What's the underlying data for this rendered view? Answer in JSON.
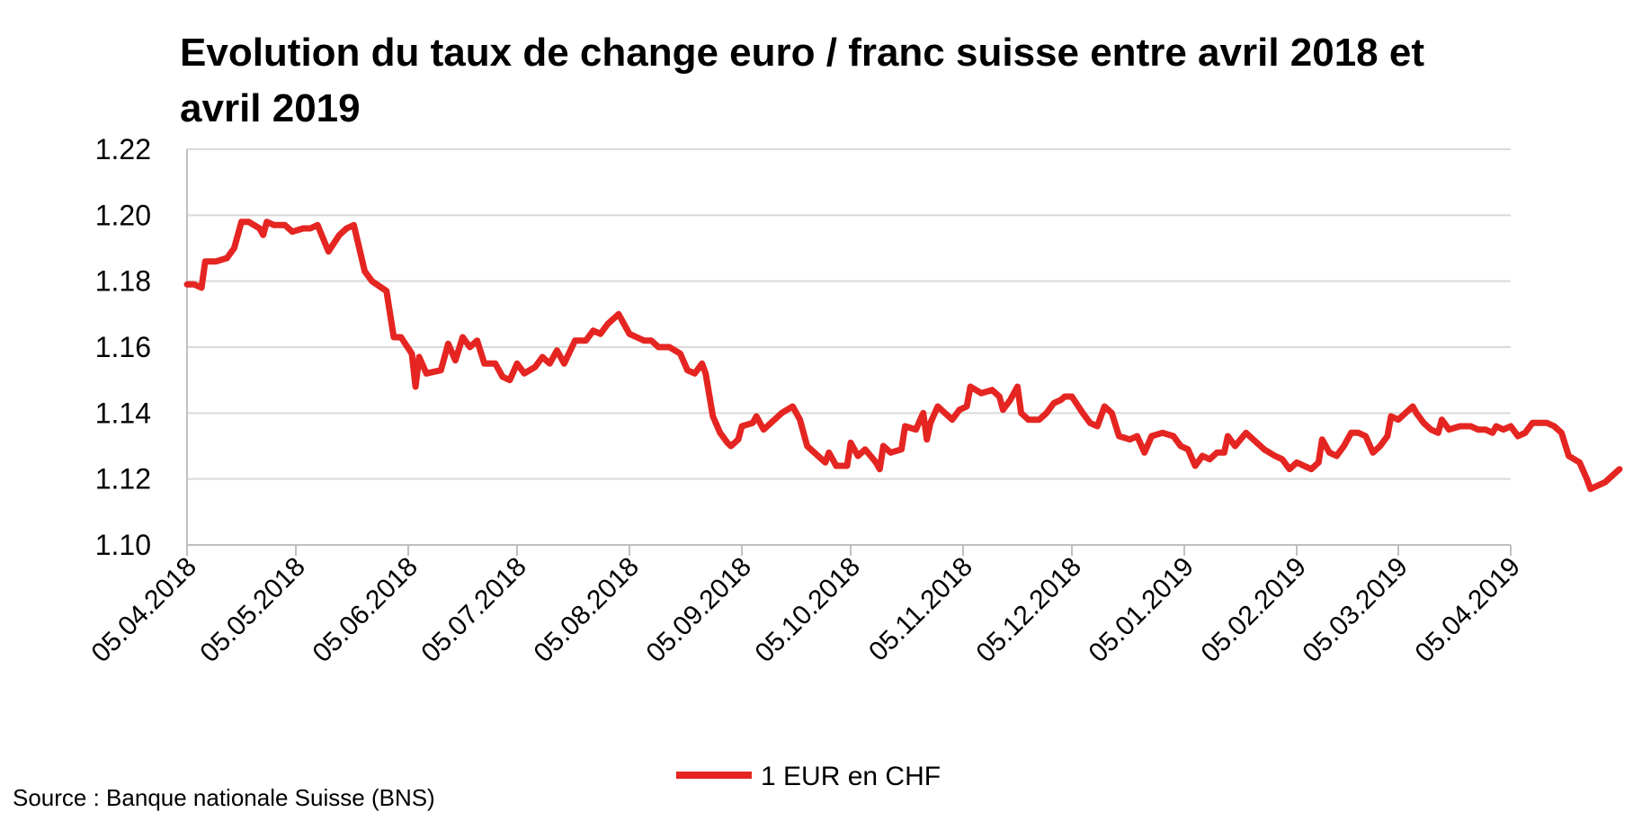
{
  "chart_data": {
    "type": "line",
    "title": "Evolution du taux de change euro / franc suisse entre avril 2018 et avril 2019",
    "source": "Source : Banque nationale Suisse (BNS)",
    "xlabel": "",
    "ylabel": "",
    "ylim": [
      1.1,
      1.22
    ],
    "y_ticks": [
      "1.10",
      "1.12",
      "1.14",
      "1.16",
      "1.18",
      "1.20",
      "1.22"
    ],
    "x_ticks": [
      "05.04.2018",
      "05.05.2018",
      "05.06.2018",
      "05.07.2018",
      "05.08.2018",
      "05.09.2018",
      "05.10.2018",
      "05.11.2018",
      "05.12.2018",
      "05.01.2019",
      "05.02.2019",
      "05.03.2019",
      "05.04.2019"
    ],
    "grid": "horizontal",
    "legend_position": "bottom",
    "colors": {
      "line": "#e52521",
      "grid": "#d9d9d9",
      "axis": "#bfbfbf"
    },
    "series": [
      {
        "name": "1 EUR en CHF",
        "points": [
          [
            "2018-04-05",
            1.179
          ],
          [
            "2018-04-07",
            1.179
          ],
          [
            "2018-04-09",
            1.178
          ],
          [
            "2018-04-10",
            1.186
          ],
          [
            "2018-04-13",
            1.186
          ],
          [
            "2018-04-16",
            1.187
          ],
          [
            "2018-04-18",
            1.19
          ],
          [
            "2018-04-20",
            1.198
          ],
          [
            "2018-04-22",
            1.198
          ],
          [
            "2018-04-25",
            1.196
          ],
          [
            "2018-04-26",
            1.194
          ],
          [
            "2018-04-27",
            1.198
          ],
          [
            "2018-04-29",
            1.197
          ],
          [
            "2018-05-02",
            1.197
          ],
          [
            "2018-05-04",
            1.195
          ],
          [
            "2018-05-07",
            1.196
          ],
          [
            "2018-05-09",
            1.196
          ],
          [
            "2018-05-11",
            1.197
          ],
          [
            "2018-05-14",
            1.189
          ],
          [
            "2018-05-17",
            1.194
          ],
          [
            "2018-05-19",
            1.196
          ],
          [
            "2018-05-21",
            1.197
          ],
          [
            "2018-05-24",
            1.183
          ],
          [
            "2018-05-26",
            1.18
          ],
          [
            "2018-05-30",
            1.177
          ],
          [
            "2018-06-01",
            1.163
          ],
          [
            "2018-06-03",
            1.163
          ],
          [
            "2018-06-06",
            1.158
          ],
          [
            "2018-06-07",
            1.148
          ],
          [
            "2018-06-08",
            1.157
          ],
          [
            "2018-06-10",
            1.152
          ],
          [
            "2018-06-14",
            1.153
          ],
          [
            "2018-06-16",
            1.161
          ],
          [
            "2018-06-18",
            1.156
          ],
          [
            "2018-06-20",
            1.163
          ],
          [
            "2018-06-22",
            1.16
          ],
          [
            "2018-06-24",
            1.162
          ],
          [
            "2018-06-26",
            1.155
          ],
          [
            "2018-06-29",
            1.155
          ],
          [
            "2018-07-01",
            1.151
          ],
          [
            "2018-07-03",
            1.15
          ],
          [
            "2018-07-05",
            1.155
          ],
          [
            "2018-07-07",
            1.152
          ],
          [
            "2018-07-10",
            1.154
          ],
          [
            "2018-07-12",
            1.157
          ],
          [
            "2018-07-14",
            1.155
          ],
          [
            "2018-07-16",
            1.159
          ],
          [
            "2018-07-18",
            1.155
          ],
          [
            "2018-07-21",
            1.162
          ],
          [
            "2018-07-24",
            1.162
          ],
          [
            "2018-07-26",
            1.165
          ],
          [
            "2018-07-28",
            1.164
          ],
          [
            "2018-07-30",
            1.167
          ],
          [
            "2018-08-02",
            1.17
          ],
          [
            "2018-08-05",
            1.164
          ],
          [
            "2018-08-07",
            1.163
          ],
          [
            "2018-08-09",
            1.162
          ],
          [
            "2018-08-11",
            1.162
          ],
          [
            "2018-08-13",
            1.16
          ],
          [
            "2018-08-16",
            1.16
          ],
          [
            "2018-08-19",
            1.158
          ],
          [
            "2018-08-21",
            1.153
          ],
          [
            "2018-08-23",
            1.152
          ],
          [
            "2018-08-25",
            1.155
          ],
          [
            "2018-08-26",
            1.152
          ],
          [
            "2018-08-28",
            1.139
          ],
          [
            "2018-08-30",
            1.134
          ],
          [
            "2018-09-01",
            1.131
          ],
          [
            "2018-09-02",
            1.13
          ],
          [
            "2018-09-04",
            1.132
          ],
          [
            "2018-09-05",
            1.136
          ],
          [
            "2018-09-08",
            1.137
          ],
          [
            "2018-09-09",
            1.139
          ],
          [
            "2018-09-11",
            1.135
          ],
          [
            "2018-09-13",
            1.137
          ],
          [
            "2018-09-16",
            1.14
          ],
          [
            "2018-09-19",
            1.142
          ],
          [
            "2018-09-21",
            1.138
          ],
          [
            "2018-09-23",
            1.13
          ],
          [
            "2018-09-26",
            1.127
          ],
          [
            "2018-09-28",
            1.125
          ],
          [
            "2018-09-29",
            1.128
          ],
          [
            "2018-10-01",
            1.124
          ],
          [
            "2018-10-04",
            1.124
          ],
          [
            "2018-10-05",
            1.131
          ],
          [
            "2018-10-07",
            1.127
          ],
          [
            "2018-10-09",
            1.129
          ],
          [
            "2018-10-12",
            1.125
          ],
          [
            "2018-10-13",
            1.123
          ],
          [
            "2018-10-14",
            1.13
          ],
          [
            "2018-10-16",
            1.128
          ],
          [
            "2018-10-19",
            1.129
          ],
          [
            "2018-10-20",
            1.136
          ],
          [
            "2018-10-23",
            1.135
          ],
          [
            "2018-10-25",
            1.14
          ],
          [
            "2018-10-26",
            1.132
          ],
          [
            "2018-10-27",
            1.137
          ],
          [
            "2018-10-29",
            1.142
          ],
          [
            "2018-10-31",
            1.14
          ],
          [
            "2018-11-02",
            1.138
          ],
          [
            "2018-11-04",
            1.141
          ],
          [
            "2018-11-06",
            1.142
          ],
          [
            "2018-11-07",
            1.148
          ],
          [
            "2018-11-10",
            1.146
          ],
          [
            "2018-11-13",
            1.147
          ],
          [
            "2018-11-15",
            1.145
          ],
          [
            "2018-11-16",
            1.141
          ],
          [
            "2018-11-18",
            1.144
          ],
          [
            "2018-11-20",
            1.148
          ],
          [
            "2018-11-21",
            1.14
          ],
          [
            "2018-11-23",
            1.138
          ],
          [
            "2018-11-26",
            1.138
          ],
          [
            "2018-11-28",
            1.14
          ],
          [
            "2018-11-30",
            1.143
          ],
          [
            "2018-12-02",
            1.144
          ],
          [
            "2018-12-03",
            1.145
          ],
          [
            "2018-12-05",
            1.145
          ],
          [
            "2018-12-08",
            1.14
          ],
          [
            "2018-12-10",
            1.137
          ],
          [
            "2018-12-12",
            1.136
          ],
          [
            "2018-12-14",
            1.142
          ],
          [
            "2018-12-16",
            1.14
          ],
          [
            "2018-12-18",
            1.133
          ],
          [
            "2018-12-21",
            1.132
          ],
          [
            "2018-12-23",
            1.133
          ],
          [
            "2018-12-25",
            1.128
          ],
          [
            "2018-12-27",
            1.133
          ],
          [
            "2018-12-30",
            1.134
          ],
          [
            "2019-01-02",
            1.133
          ],
          [
            "2019-01-04",
            1.13
          ],
          [
            "2019-01-06",
            1.129
          ],
          [
            "2019-01-08",
            1.124
          ],
          [
            "2019-01-10",
            1.127
          ],
          [
            "2019-01-12",
            1.126
          ],
          [
            "2019-01-14",
            1.128
          ],
          [
            "2019-01-16",
            1.128
          ],
          [
            "2019-01-17",
            1.133
          ],
          [
            "2019-01-19",
            1.13
          ],
          [
            "2019-01-22",
            1.134
          ],
          [
            "2019-01-24",
            1.132
          ],
          [
            "2019-01-27",
            1.129
          ],
          [
            "2019-01-30",
            1.127
          ],
          [
            "2019-02-01",
            1.126
          ],
          [
            "2019-02-03",
            1.123
          ],
          [
            "2019-02-05",
            1.125
          ],
          [
            "2019-02-07",
            1.124
          ],
          [
            "2019-02-09",
            1.123
          ],
          [
            "2019-02-11",
            1.125
          ],
          [
            "2019-02-12",
            1.132
          ],
          [
            "2019-02-14",
            1.128
          ],
          [
            "2019-02-16",
            1.127
          ],
          [
            "2019-02-18",
            1.13
          ],
          [
            "2019-02-20",
            1.134
          ],
          [
            "2019-02-22",
            1.134
          ],
          [
            "2019-02-24",
            1.133
          ],
          [
            "2019-02-26",
            1.128
          ],
          [
            "2019-02-28",
            1.13
          ],
          [
            "2019-03-02",
            1.133
          ],
          [
            "2019-03-03",
            1.139
          ],
          [
            "2019-03-05",
            1.138
          ],
          [
            "2019-03-07",
            1.14
          ],
          [
            "2019-03-09",
            1.142
          ],
          [
            "2019-03-10",
            1.14
          ],
          [
            "2019-03-12",
            1.137
          ],
          [
            "2019-03-14",
            1.135
          ],
          [
            "2019-03-16",
            1.134
          ],
          [
            "2019-03-17",
            1.138
          ],
          [
            "2019-03-19",
            1.135
          ],
          [
            "2019-03-22",
            1.136
          ],
          [
            "2019-03-25",
            1.136
          ],
          [
            "2019-03-27",
            1.135
          ],
          [
            "2019-03-29",
            1.135
          ],
          [
            "2019-03-31",
            1.134
          ],
          [
            "2019-04-01",
            1.136
          ],
          [
            "2019-04-03",
            1.135
          ],
          [
            "2019-04-05",
            1.136
          ],
          [
            "2019-04-07",
            1.133
          ],
          [
            "2019-04-09",
            1.134
          ],
          [
            "2019-04-11",
            1.137
          ],
          [
            "2019-04-13",
            1.137
          ],
          [
            "2019-04-15",
            1.137
          ],
          [
            "2019-04-17",
            1.136
          ],
          [
            "2019-04-19",
            1.134
          ],
          [
            "2019-04-21",
            1.127
          ],
          [
            "2019-04-24",
            1.125
          ],
          [
            "2019-04-26",
            1.12
          ],
          [
            "2019-04-27",
            1.117
          ],
          [
            "2019-04-29",
            1.118
          ],
          [
            "2019-05-01",
            1.119
          ],
          [
            "2019-05-03",
            1.121
          ],
          [
            "2019-05-05",
            1.123
          ]
        ]
      }
    ]
  }
}
